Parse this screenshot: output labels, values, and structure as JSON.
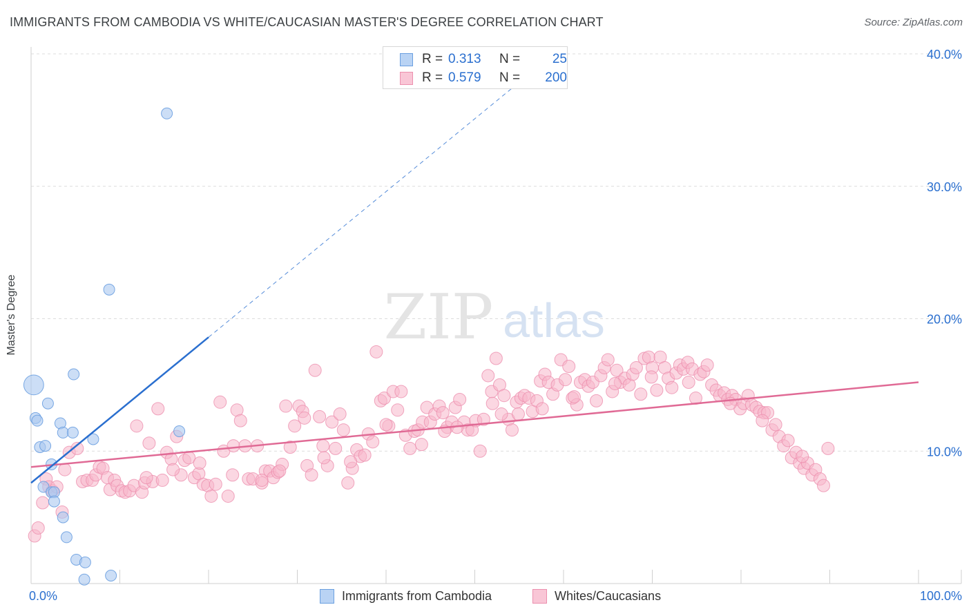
{
  "header": {
    "title": "IMMIGRANTS FROM CAMBODIA VS WHITE/CAUCASIAN MASTER'S DEGREE CORRELATION CHART",
    "source": "Source: ZipAtlas.com"
  },
  "watermark": {
    "part1": "ZIP",
    "part2": "atlas"
  },
  "legend_top": {
    "rows": [
      {
        "r_label": "R =",
        "r_value": "0.313",
        "n_label": "N =",
        "n_value": "25"
      },
      {
        "r_label": "R =",
        "r_value": "0.579",
        "n_label": "N =",
        "n_value": "200"
      }
    ]
  },
  "legend_bottom": {
    "series1": "Immigrants from Cambodia",
    "series2": "Whites/Caucasians"
  },
  "chart_data": {
    "type": "scatter",
    "xlabel": "",
    "ylabel": "Master's Degree",
    "xlim": [
      0,
      100
    ],
    "ylim": [
      0,
      40
    ],
    "x_tick_labels": [
      "0.0%",
      "100.0%"
    ],
    "y_tick_labels": [
      "10.0%",
      "20.0%",
      "30.0%",
      "40.0%"
    ],
    "y_ticks": [
      10,
      20,
      30,
      40
    ],
    "colors": {
      "series1_fill": "#aac8f0",
      "series1_stroke": "#6a9fe0",
      "series1_line": "#2a6fcf",
      "series2_fill": "#f7b7cb",
      "series2_stroke": "#ec8fae",
      "series2_line": "#e06a95",
      "tick_label": "#2a6fcf",
      "grid": "#dcdcdc"
    },
    "series": [
      {
        "name": "Immigrants from Cambodia",
        "r": 0.313,
        "n": 25,
        "trend": {
          "x0": 0,
          "y0": 7.6,
          "x1": 20,
          "y1": 18.6,
          "dashed_to_x": 57
        },
        "points": [
          [
            0.3,
            15.0,
            1.8
          ],
          [
            0.5,
            12.5,
            1.0
          ],
          [
            0.7,
            12.3,
            1.0
          ],
          [
            1.0,
            10.3,
            1.0
          ],
          [
            1.6,
            10.4,
            1.0
          ],
          [
            1.9,
            13.6,
            1.0
          ],
          [
            2.3,
            9.0,
            1.0
          ],
          [
            3.3,
            12.1,
            1.0
          ],
          [
            3.6,
            11.4,
            1.0
          ],
          [
            4.7,
            11.4,
            1.0
          ],
          [
            4.8,
            15.8,
            1.0
          ],
          [
            7.0,
            10.9,
            1.0
          ],
          [
            8.8,
            22.2,
            1.0
          ],
          [
            15.3,
            35.5,
            1.0
          ],
          [
            16.7,
            11.5,
            1.0
          ],
          [
            1.4,
            7.3,
            1.0
          ],
          [
            2.3,
            6.9,
            1.0
          ],
          [
            2.6,
            6.9,
            1.0
          ],
          [
            2.6,
            6.2,
            1.0
          ],
          [
            3.6,
            5.0,
            1.0
          ],
          [
            4.0,
            3.5,
            1.0
          ],
          [
            5.1,
            1.8,
            1.0
          ],
          [
            6.1,
            1.6,
            1.0
          ],
          [
            6.0,
            0.3,
            1.0
          ],
          [
            9.0,
            0.6,
            1.0
          ]
        ]
      },
      {
        "name": "Whites/Caucasians",
        "r": 0.579,
        "n": 200,
        "trend": {
          "x0": 0,
          "y0": 8.8,
          "x1": 100,
          "y1": 15.2
        },
        "points": [
          [
            0.4,
            3.6
          ],
          [
            0.8,
            4.2
          ],
          [
            1.3,
            6.1
          ],
          [
            1.7,
            7.9
          ],
          [
            2.0,
            7.3
          ],
          [
            2.4,
            7.0
          ],
          [
            2.9,
            7.3
          ],
          [
            3.5,
            5.4
          ],
          [
            3.8,
            8.6
          ],
          [
            4.3,
            9.9
          ],
          [
            5.2,
            10.2
          ],
          [
            5.8,
            7.7
          ],
          [
            6.3,
            7.8
          ],
          [
            6.9,
            7.8
          ],
          [
            7.3,
            8.2
          ],
          [
            7.7,
            8.8
          ],
          [
            8.1,
            8.7
          ],
          [
            8.6,
            8.0
          ],
          [
            8.9,
            7.1
          ],
          [
            9.4,
            7.8
          ],
          [
            9.7,
            7.4
          ],
          [
            10.2,
            7.0
          ],
          [
            10.6,
            6.9
          ],
          [
            11.1,
            7.0
          ],
          [
            11.6,
            7.4
          ],
          [
            11.9,
            11.9
          ],
          [
            12.5,
            6.9
          ],
          [
            12.8,
            7.6
          ],
          [
            13.3,
            10.6
          ],
          [
            13.7,
            7.7
          ],
          [
            14.3,
            13.2
          ],
          [
            14.8,
            7.8
          ],
          [
            15.3,
            9.9
          ],
          [
            15.8,
            9.4
          ],
          [
            16.4,
            11.1
          ],
          [
            16.9,
            8.2
          ],
          [
            17.3,
            9.3
          ],
          [
            17.8,
            9.5
          ],
          [
            18.4,
            8.0
          ],
          [
            18.9,
            8.3
          ],
          [
            19.4,
            7.5
          ],
          [
            19.9,
            7.4
          ],
          [
            20.3,
            6.6
          ],
          [
            20.8,
            7.5
          ],
          [
            21.3,
            13.7
          ],
          [
            21.7,
            10.0
          ],
          [
            22.2,
            6.6
          ],
          [
            22.7,
            8.2
          ],
          [
            23.2,
            13.1
          ],
          [
            23.6,
            12.3
          ],
          [
            24.1,
            10.4
          ],
          [
            24.5,
            7.9
          ],
          [
            25.0,
            7.9
          ],
          [
            25.5,
            10.4
          ],
          [
            26.0,
            7.6
          ],
          [
            26.4,
            8.5
          ],
          [
            26.9,
            8.5
          ],
          [
            27.3,
            8.0
          ],
          [
            27.8,
            8.4
          ],
          [
            28.3,
            9.0
          ],
          [
            28.7,
            13.4
          ],
          [
            29.2,
            10.3
          ],
          [
            29.7,
            11.9
          ],
          [
            30.2,
            13.4
          ],
          [
            30.6,
            13.0
          ],
          [
            31.1,
            8.9
          ],
          [
            31.6,
            8.2
          ],
          [
            32.0,
            16.1
          ],
          [
            32.5,
            12.6
          ],
          [
            32.9,
            10.4
          ],
          [
            33.4,
            8.9
          ],
          [
            33.9,
            12.2
          ],
          [
            34.3,
            10.2
          ],
          [
            34.8,
            12.8
          ],
          [
            35.2,
            11.6
          ],
          [
            35.7,
            7.6
          ],
          [
            36.2,
            8.7
          ],
          [
            36.7,
            10.1
          ],
          [
            37.1,
            9.6
          ],
          [
            37.6,
            9.7
          ],
          [
            38.0,
            11.3
          ],
          [
            38.5,
            10.7
          ],
          [
            38.9,
            17.5
          ],
          [
            39.4,
            13.8
          ],
          [
            39.8,
            14.0
          ],
          [
            40.3,
            11.9
          ],
          [
            40.8,
            14.5
          ],
          [
            41.3,
            13.1
          ],
          [
            41.7,
            14.5
          ],
          [
            42.2,
            11.2
          ],
          [
            42.7,
            10.2
          ],
          [
            43.2,
            11.5
          ],
          [
            43.6,
            11.6
          ],
          [
            44.1,
            12.2
          ],
          [
            44.6,
            13.3
          ],
          [
            45.0,
            12.2
          ],
          [
            45.5,
            12.8
          ],
          [
            46.0,
            13.4
          ],
          [
            46.4,
            12.9
          ],
          [
            46.9,
            11.8
          ],
          [
            47.4,
            12.2
          ],
          [
            47.8,
            13.3
          ],
          [
            48.3,
            13.9
          ],
          [
            48.8,
            12.2
          ],
          [
            49.2,
            11.6
          ],
          [
            49.7,
            11.6
          ],
          [
            50.1,
            12.3
          ],
          [
            50.6,
            10.0
          ],
          [
            51.0,
            12.4
          ],
          [
            51.5,
            15.7
          ],
          [
            51.9,
            14.5
          ],
          [
            52.4,
            17.0
          ],
          [
            52.8,
            15.0
          ],
          [
            53.3,
            14.2
          ],
          [
            53.8,
            12.4
          ],
          [
            54.2,
            11.6
          ],
          [
            54.7,
            13.7
          ],
          [
            55.2,
            14.0
          ],
          [
            55.6,
            14.2
          ],
          [
            56.1,
            14.0
          ],
          [
            56.5,
            13.0
          ],
          [
            57.0,
            13.8
          ],
          [
            57.4,
            15.3
          ],
          [
            57.9,
            15.8
          ],
          [
            58.3,
            15.2
          ],
          [
            58.8,
            14.3
          ],
          [
            59.3,
            15.0
          ],
          [
            59.7,
            16.9
          ],
          [
            60.2,
            15.4
          ],
          [
            60.6,
            16.4
          ],
          [
            61.0,
            14.0
          ],
          [
            61.5,
            13.5
          ],
          [
            61.9,
            15.2
          ],
          [
            62.4,
            15.4
          ],
          [
            62.8,
            14.9
          ],
          [
            63.3,
            15.2
          ],
          [
            63.7,
            13.8
          ],
          [
            64.2,
            15.7
          ],
          [
            64.6,
            16.3
          ],
          [
            65.0,
            16.9
          ],
          [
            65.5,
            14.5
          ],
          [
            66.0,
            16.1
          ],
          [
            66.4,
            15.2
          ],
          [
            66.9,
            15.5
          ],
          [
            67.4,
            15.0
          ],
          [
            67.8,
            15.8
          ],
          [
            68.2,
            16.3
          ],
          [
            68.7,
            14.3
          ],
          [
            69.1,
            17.0
          ],
          [
            69.6,
            17.1
          ],
          [
            70.0,
            16.3
          ],
          [
            70.5,
            14.6
          ],
          [
            70.9,
            17.1
          ],
          [
            71.4,
            16.3
          ],
          [
            71.8,
            15.5
          ],
          [
            72.2,
            14.8
          ],
          [
            72.7,
            15.9
          ],
          [
            73.1,
            16.5
          ],
          [
            73.5,
            16.2
          ],
          [
            74.0,
            16.7
          ],
          [
            74.5,
            16.2
          ],
          [
            74.9,
            14.0
          ],
          [
            75.4,
            15.8
          ],
          [
            75.8,
            16.0
          ],
          [
            76.2,
            16.5
          ],
          [
            76.7,
            15.0
          ],
          [
            77.2,
            14.6
          ],
          [
            77.6,
            14.2
          ],
          [
            78.1,
            14.4
          ],
          [
            78.5,
            13.9
          ],
          [
            79.0,
            14.2
          ],
          [
            79.4,
            13.9
          ],
          [
            79.9,
            13.2
          ],
          [
            80.3,
            13.6
          ],
          [
            80.8,
            14.2
          ],
          [
            81.2,
            13.5
          ],
          [
            81.7,
            13.3
          ],
          [
            82.1,
            13.0
          ],
          [
            82.6,
            12.9
          ],
          [
            83.0,
            12.9
          ],
          [
            83.5,
            11.6
          ],
          [
            83.9,
            12.0
          ],
          [
            84.3,
            11.1
          ],
          [
            84.8,
            10.4
          ],
          [
            85.3,
            10.8
          ],
          [
            85.7,
            9.5
          ],
          [
            86.2,
            9.9
          ],
          [
            86.6,
            9.1
          ],
          [
            87.1,
            8.7
          ],
          [
            87.5,
            9.1
          ],
          [
            88.0,
            8.2
          ],
          [
            88.4,
            8.6
          ],
          [
            88.9,
            7.9
          ],
          [
            89.3,
            7.4
          ],
          [
            89.8,
            10.2
          ],
          [
            28.0,
            8.5
          ],
          [
            26.0,
            7.8
          ],
          [
            33.0,
            9.5
          ],
          [
            36.0,
            9.2
          ],
          [
            44.0,
            10.5
          ],
          [
            48.0,
            11.8
          ],
          [
            53.0,
            12.8
          ],
          [
            57.6,
            13.2
          ],
          [
            61.2,
            14.1
          ],
          [
            65.8,
            15.1
          ],
          [
            69.9,
            15.6
          ],
          [
            74.1,
            15.2
          ],
          [
            78.8,
            13.6
          ],
          [
            82.4,
            12.3
          ],
          [
            86.9,
            9.6
          ],
          [
            19.0,
            9.1
          ],
          [
            16.0,
            8.6
          ],
          [
            13.0,
            8.0
          ],
          [
            22.8,
            10.4
          ],
          [
            30.8,
            12.5
          ],
          [
            40.0,
            12.0
          ],
          [
            46.6,
            11.5
          ],
          [
            52.0,
            13.6
          ],
          [
            54.9,
            12.8
          ]
        ]
      }
    ]
  }
}
